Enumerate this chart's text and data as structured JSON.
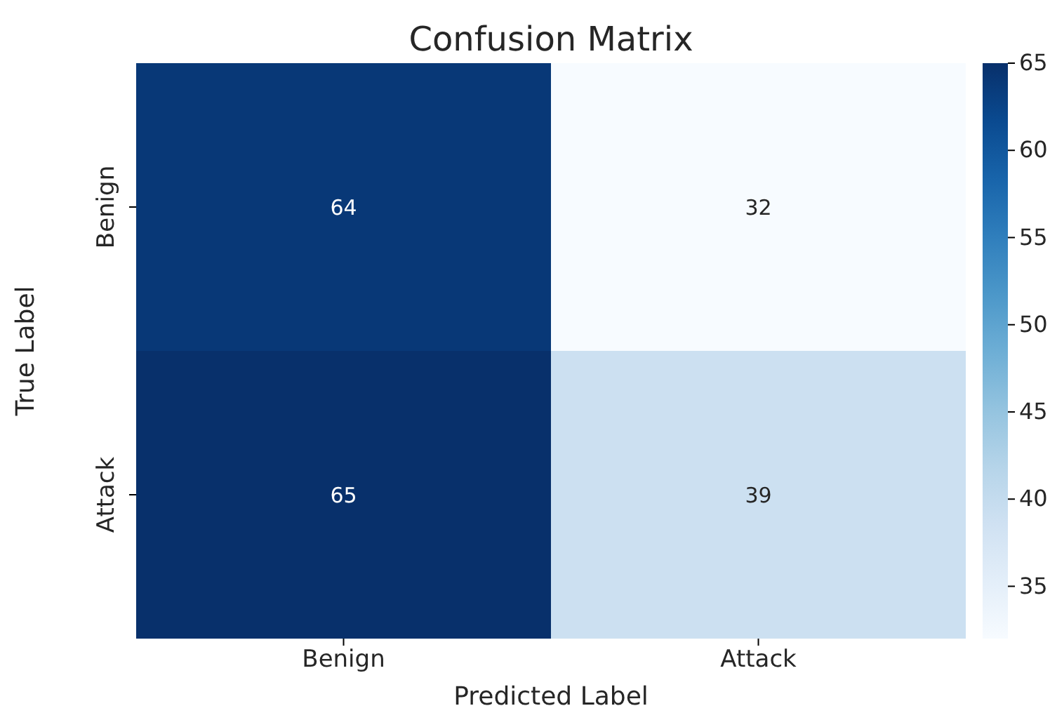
{
  "chart_data": {
    "type": "heatmap",
    "title": "Confusion Matrix",
    "xlabel": "Predicted Label",
    "ylabel": "True Label",
    "categories": [
      "Benign",
      "Attack"
    ],
    "y_categories": [
      "Benign",
      "Attack"
    ],
    "cells": [
      [
        64,
        32
      ],
      [
        65,
        39
      ]
    ],
    "clim": [
      32,
      65
    ],
    "cticks": [
      35,
      40,
      45,
      50,
      55,
      60,
      65
    ],
    "data_labels": true
  }
}
